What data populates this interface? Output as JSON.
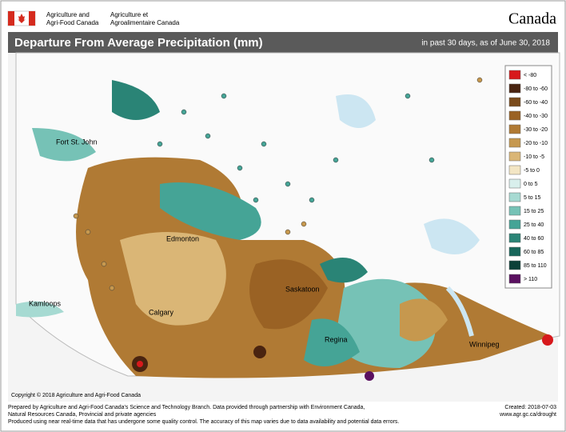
{
  "header": {
    "dept_en": [
      "Agriculture and",
      "Agri-Food Canada"
    ],
    "dept_fr": [
      "Agriculture et",
      "Agroalimentaire Canada"
    ],
    "wordmark": "Canada"
  },
  "map": {
    "title": "Departure From Average Precipitation (mm)",
    "subtitle": "in past 30 days, as of June 30, 2018",
    "cities": [
      "Fort St. John",
      "Edmonton",
      "Kamloops",
      "Calgary",
      "Saskatoon",
      "Regina",
      "Winnipeg"
    ],
    "legend": [
      {
        "label": "< -80",
        "color": "#d7191c"
      },
      {
        "label": "-80 to -60",
        "color": "#4a2410"
      },
      {
        "label": "-60 to -40",
        "color": "#7a4a1a"
      },
      {
        "label": "-40 to -30",
        "color": "#9a6224"
      },
      {
        "label": "-30 to -20",
        "color": "#b07a34"
      },
      {
        "label": "-20 to -10",
        "color": "#c6984e"
      },
      {
        "label": "-10 to -5",
        "color": "#dab676"
      },
      {
        "label": "-5 to 0",
        "color": "#f3e6c4"
      },
      {
        "label": "0 to 5",
        "color": "#d8efec"
      },
      {
        "label": "5 to 15",
        "color": "#a6dad2"
      },
      {
        "label": "15 to 25",
        "color": "#76c2b6"
      },
      {
        "label": "25 to 40",
        "color": "#45a496"
      },
      {
        "label": "40 to 60",
        "color": "#2a8476"
      },
      {
        "label": "60 to 85",
        "color": "#17665a"
      },
      {
        "label": "85 to 110",
        "color": "#0c4038"
      },
      {
        "label": "> 110",
        "color": "#5a1060"
      }
    ],
    "copyright": "Copyright © 2018 Agriculture and Agri-Food Canada"
  },
  "footer": {
    "lines": [
      "Prepared by Agriculture and Agri-Food Canada's Science and Technology Branch. Data provided through partnership with Environment Canada,",
      "Natural Resources Canada, Provincial and private agencies",
      "Produced using near real-time data that has undergone some quality control. The accuracy of this map varies due to data availability and potential data errors."
    ],
    "created": "Created: 2018-07-03",
    "url": "www.agr.gc.ca/drought"
  }
}
